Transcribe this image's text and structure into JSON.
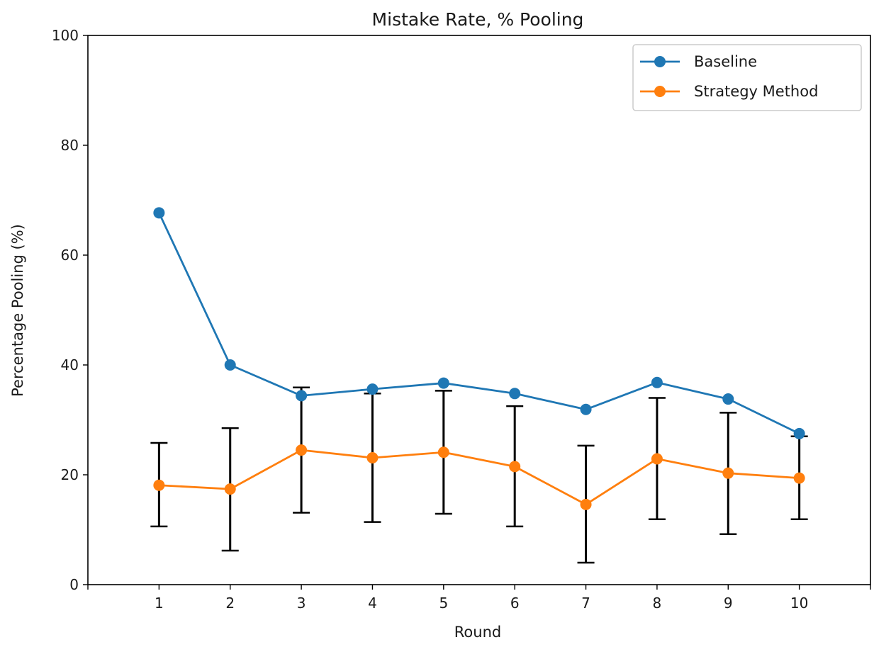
{
  "chart_data": {
    "type": "line",
    "title": "Mistake Rate, % Pooling",
    "xlabel": "Round",
    "ylabel": "Percentage Pooling (%)",
    "x": [
      1,
      2,
      3,
      4,
      5,
      6,
      7,
      8,
      9,
      10
    ],
    "xlim": [
      0,
      11
    ],
    "ylim": [
      0,
      100
    ],
    "yticks": [
      0,
      20,
      40,
      60,
      80,
      100
    ],
    "grid": false,
    "legend_position": "upper right",
    "series": [
      {
        "name": "Baseline",
        "color": "#1f77b4",
        "marker": "circle",
        "values": [
          67.7,
          40.0,
          34.4,
          35.6,
          36.7,
          34.8,
          31.9,
          36.8,
          33.8,
          27.5
        ]
      },
      {
        "name": "Strategy Method",
        "color": "#ff7f0e",
        "marker": "circle",
        "values": [
          18.1,
          17.4,
          24.5,
          23.1,
          24.1,
          21.5,
          14.6,
          22.9,
          20.3,
          19.4
        ],
        "error_low": [
          10.6,
          6.2,
          13.1,
          11.4,
          12.9,
          10.6,
          4.0,
          11.9,
          9.2,
          11.9
        ],
        "error_high": [
          25.8,
          28.5,
          35.9,
          34.8,
          35.3,
          32.5,
          25.3,
          34.0,
          31.3,
          27.0
        ],
        "error_color": "#000000"
      }
    ]
  }
}
